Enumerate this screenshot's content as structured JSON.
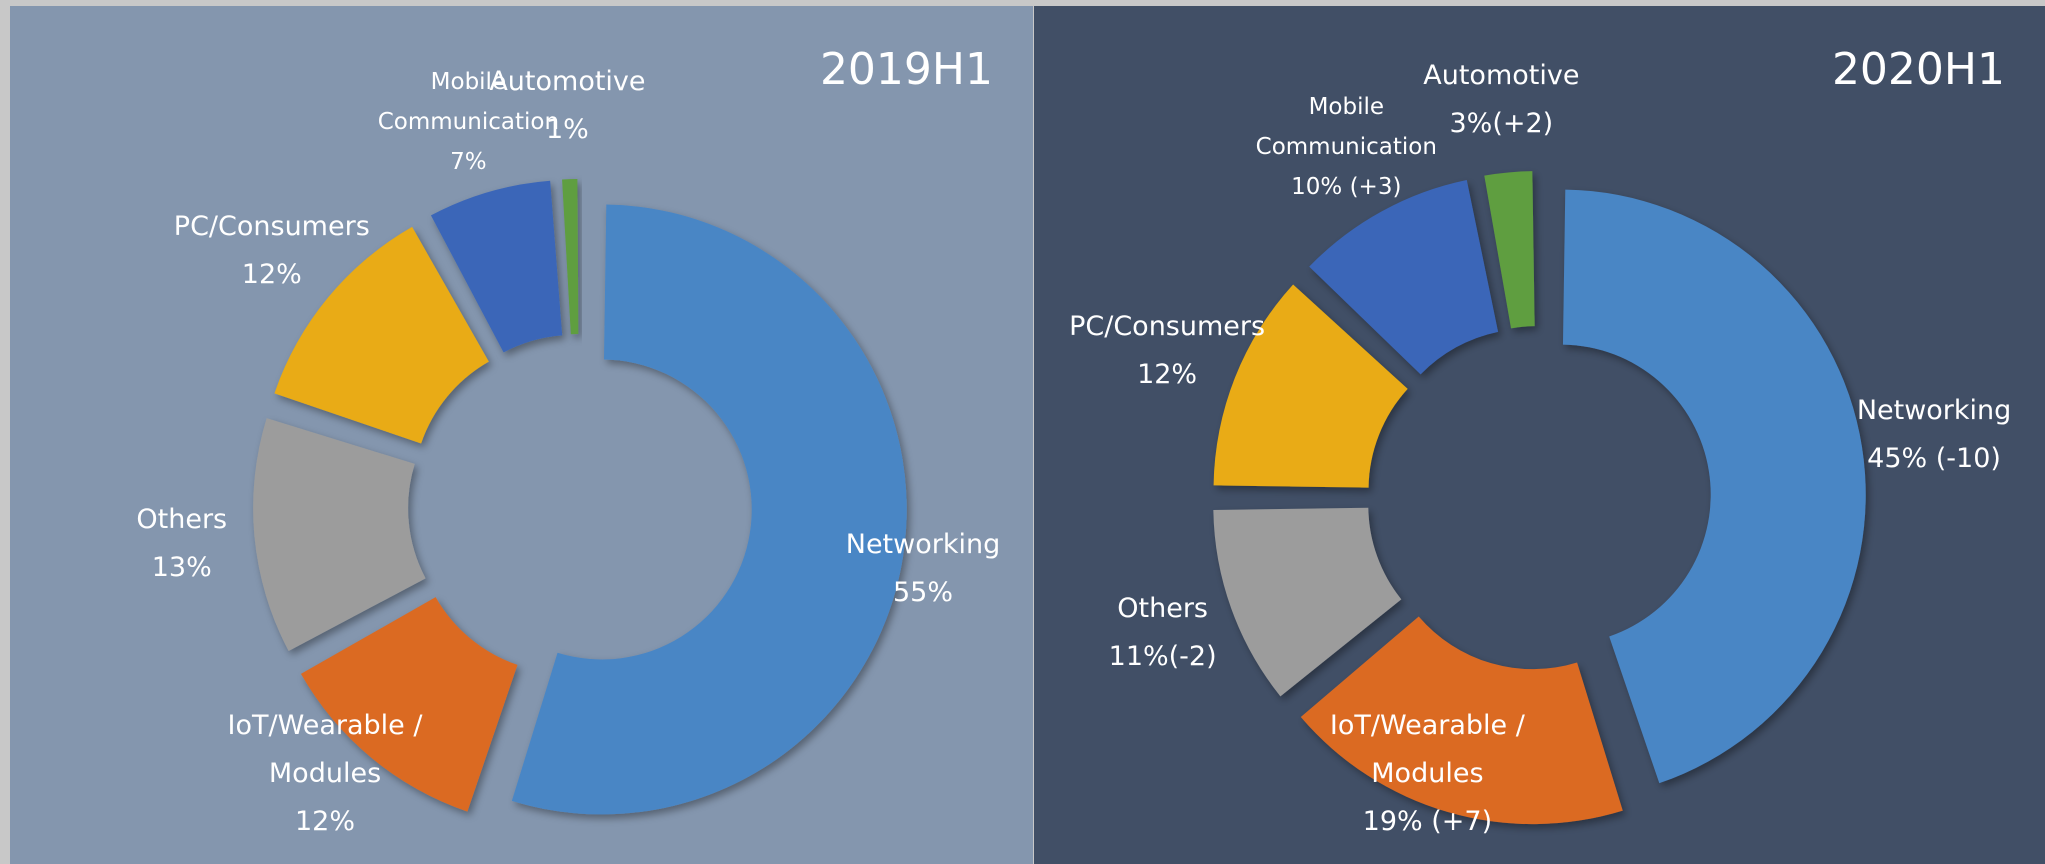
{
  "chart_data": [
    {
      "type": "pie",
      "title": "2019H1",
      "categories": [
        "Networking",
        "IoT/Wearable / Modules",
        "Others",
        "PC/Consumers",
        "Mobile Communication",
        "Automotive"
      ],
      "values": [
        55,
        12,
        13,
        12,
        7,
        1
      ],
      "value_labels": [
        "55%",
        "12%",
        "13%",
        "12%",
        "7%",
        "1%"
      ],
      "colors": [
        "#4a86c5",
        "#db6a23",
        "#9c9c9c",
        "#e9ab12",
        "#3a66b8",
        "#5f9e3f"
      ]
    },
    {
      "type": "pie",
      "title": "2020H1",
      "categories": [
        "Networking",
        "IoT/Wearable / Modules",
        "Others",
        "PC/Consumers",
        "Mobile Communication",
        "Automotive"
      ],
      "values": [
        45,
        19,
        11,
        12,
        10,
        3
      ],
      "value_labels": [
        "45% (-10)",
        "19% (+7)",
        "11%(-2)",
        "12%",
        "10% (+3)",
        "3%(+2)"
      ],
      "colors": [
        "#4a86c5",
        "#db6a23",
        "#9c9c9c",
        "#e9ab12",
        "#3a66b8",
        "#5f9e3f"
      ]
    }
  ]
}
